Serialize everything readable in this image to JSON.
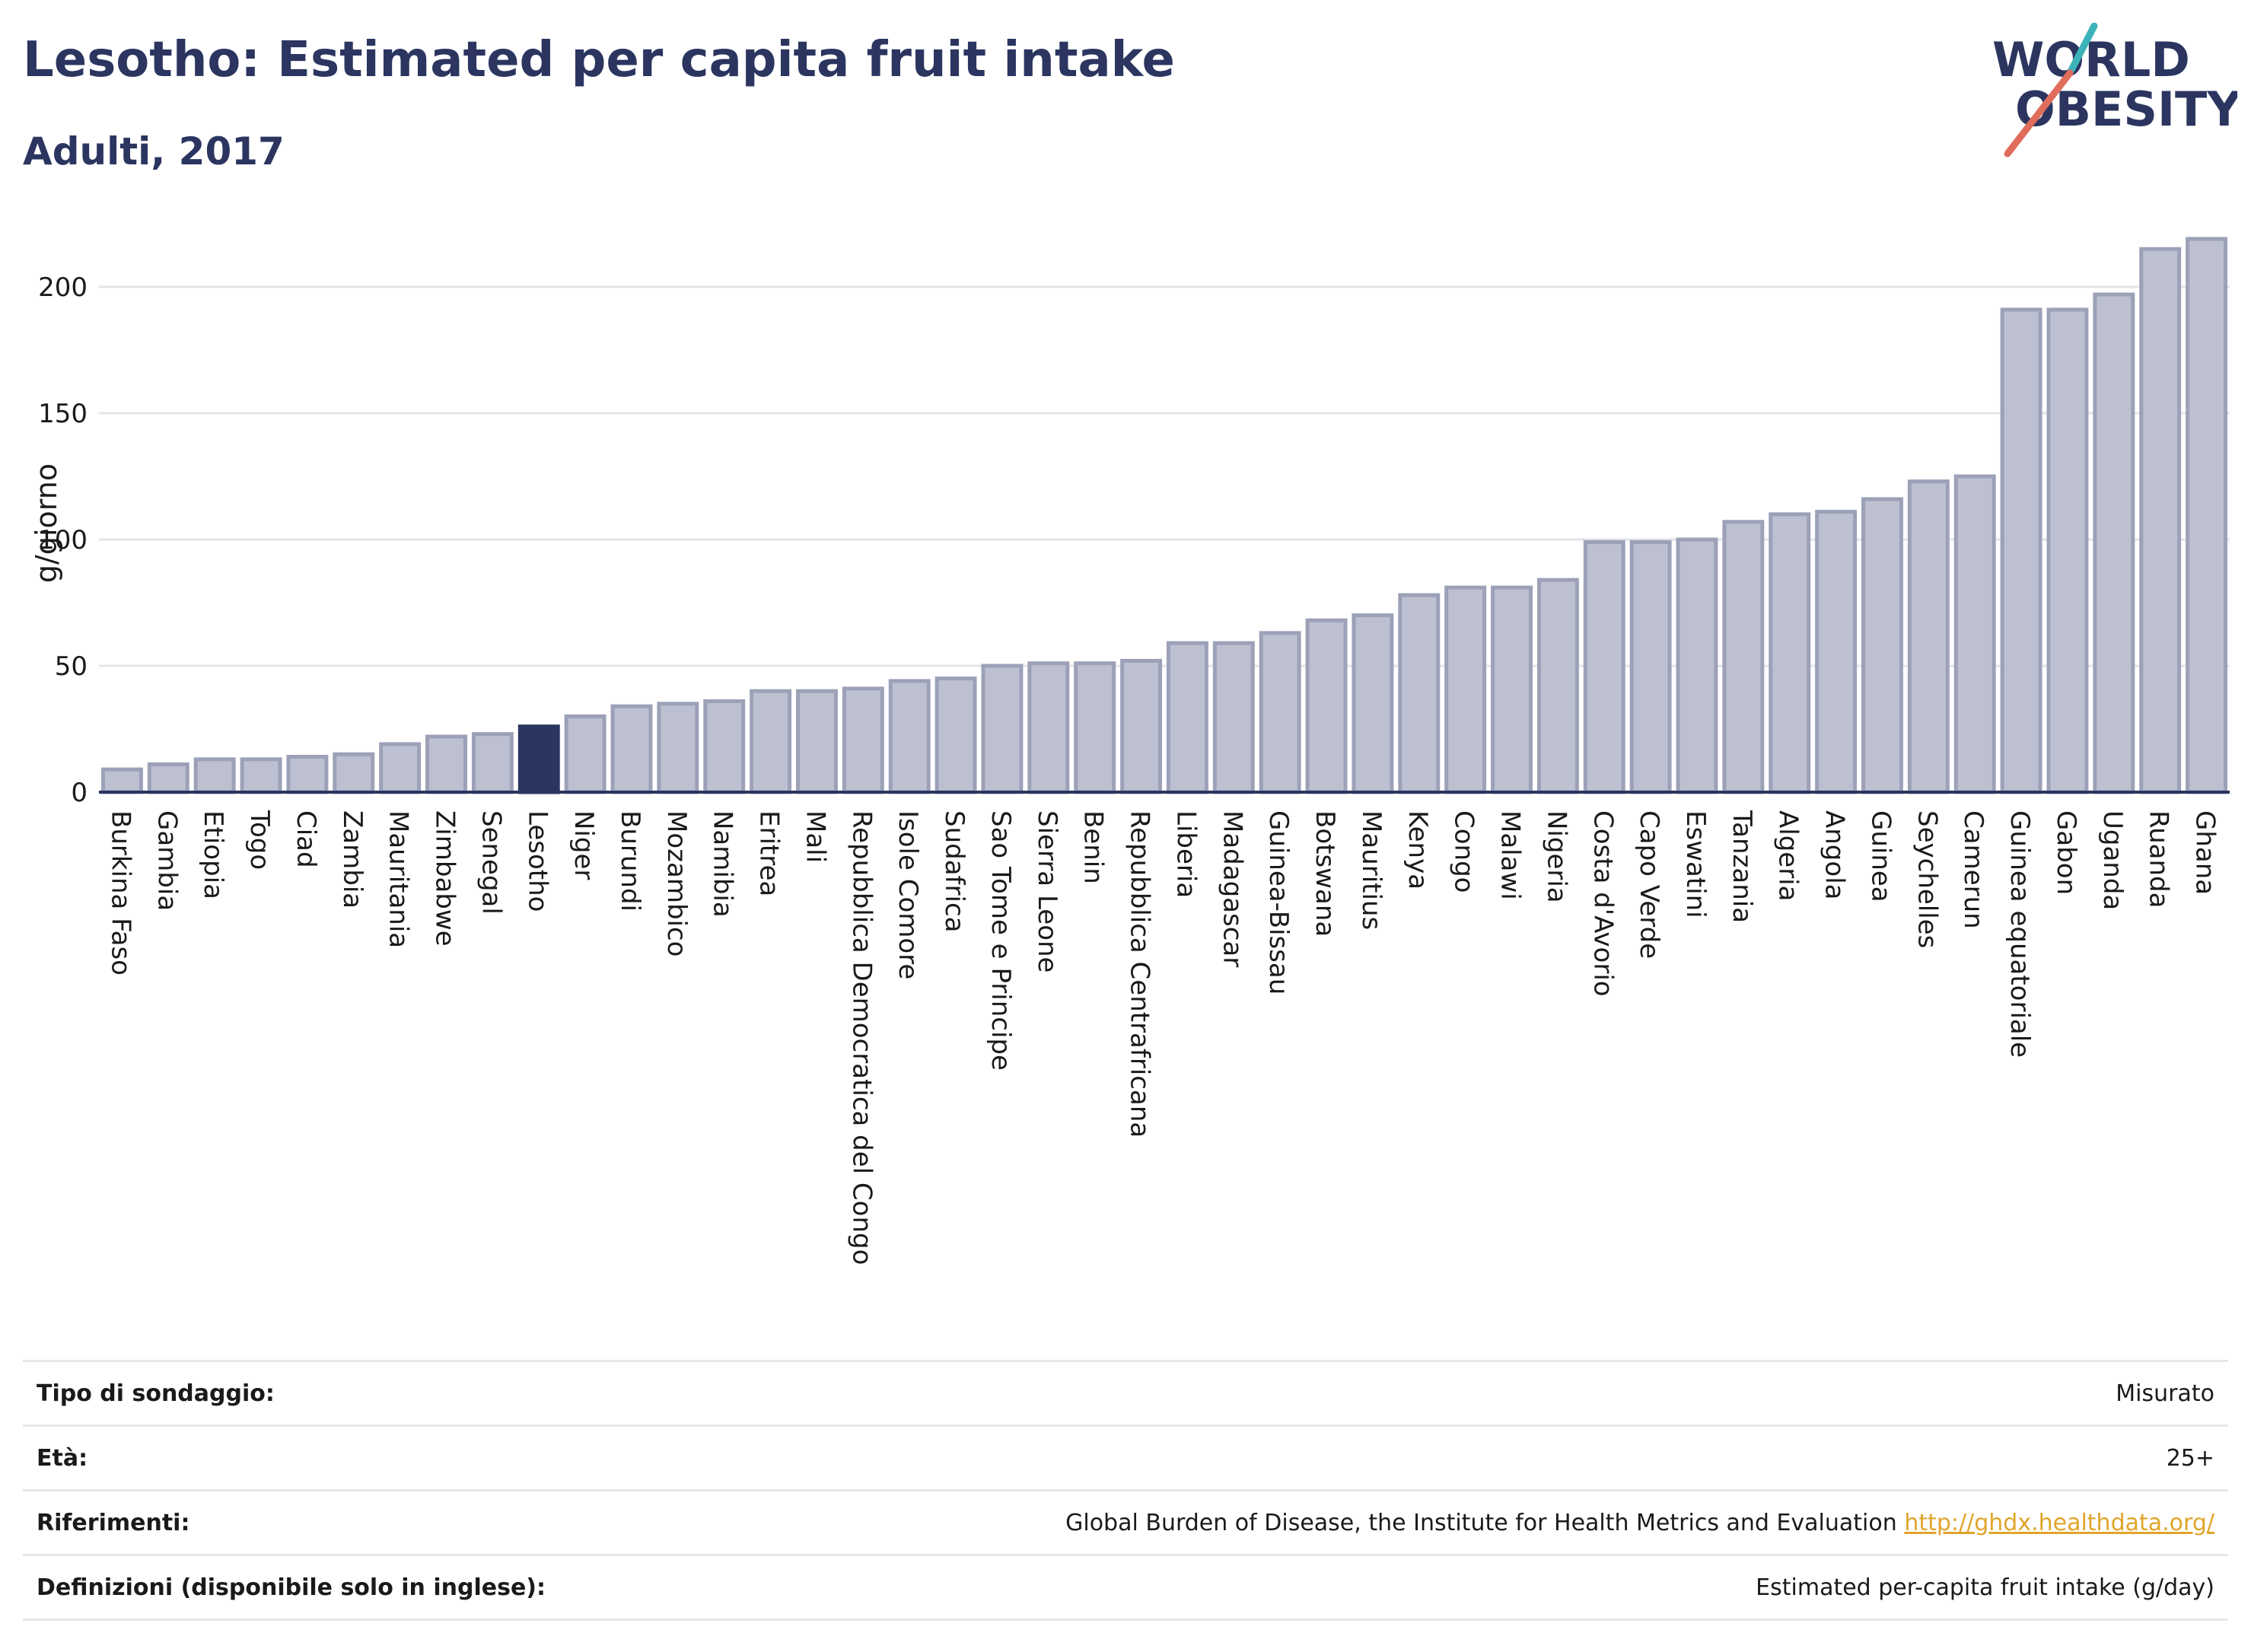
{
  "title": "Lesotho: Estimated per capita fruit intake",
  "subtitle": "Adulti, 2017",
  "logo": {
    "line1": "WORLD",
    "line2": "OBESITY"
  },
  "colors": {
    "title": "#2b3560",
    "bar": "#bcc0d0",
    "bar_stroke": "#9ca1b8",
    "highlight": "#2b3560",
    "grid": "#e3e4ea",
    "logo_teal": "#3bb3b8",
    "logo_coral": "#e06d5c",
    "link": "#e0a52b"
  },
  "chart_data": {
    "type": "bar",
    "ylabel": "g/giorno",
    "xlabel": "",
    "ylim": [
      0,
      222
    ],
    "yticks": [
      0,
      50,
      100,
      150,
      200
    ],
    "grid": true,
    "highlight": "Lesotho",
    "categories": [
      "Burkina Faso",
      "Gambia",
      "Etiopia",
      "Togo",
      "Ciad",
      "Zambia",
      "Mauritania",
      "Zimbabwe",
      "Senegal",
      "Lesotho",
      "Niger",
      "Burundi",
      "Mozambico",
      "Namibia",
      "Eritrea",
      "Mali",
      "Repubblica Democratica del Congo",
      "Isole Comore",
      "Sudafrica",
      "Sao Tome e Principe",
      "Sierra Leone",
      "Benin",
      "Repubblica Centrafricana",
      "Liberia",
      "Madagascar",
      "Guinea-Bissau",
      "Botswana",
      "Mauritius",
      "Kenya",
      "Congo",
      "Malawi",
      "Nigeria",
      "Costa d'Avorio",
      "Capo Verde",
      "Eswatini",
      "Tanzania",
      "Algeria",
      "Angola",
      "Guinea",
      "Seychelles",
      "Camerun",
      "Guinea equatoriale",
      "Gabon",
      "Uganda",
      "Ruanda",
      "Ghana"
    ],
    "values": [
      9,
      11,
      13,
      13,
      14,
      15,
      19,
      22,
      23,
      26,
      30,
      34,
      35,
      36,
      40,
      40,
      41,
      44,
      45,
      50,
      51,
      51,
      52,
      59,
      59,
      63,
      68,
      70,
      78,
      81,
      81,
      84,
      99,
      99,
      100,
      107,
      110,
      111,
      116,
      123,
      125,
      191,
      191,
      197,
      215,
      219
    ]
  },
  "meta": [
    {
      "label": "Tipo di sondaggio:",
      "value": "Misurato"
    },
    {
      "label": "Età:",
      "value": "25+"
    },
    {
      "label": "Riferimenti:",
      "value": "Global Burden of Disease, the Institute for Health Metrics and Evaluation",
      "link": "http://ghdx.healthdata.org/"
    },
    {
      "label": "Definizioni (disponibile solo in inglese):",
      "value": "Estimated per-capita fruit intake (g/day)"
    }
  ]
}
